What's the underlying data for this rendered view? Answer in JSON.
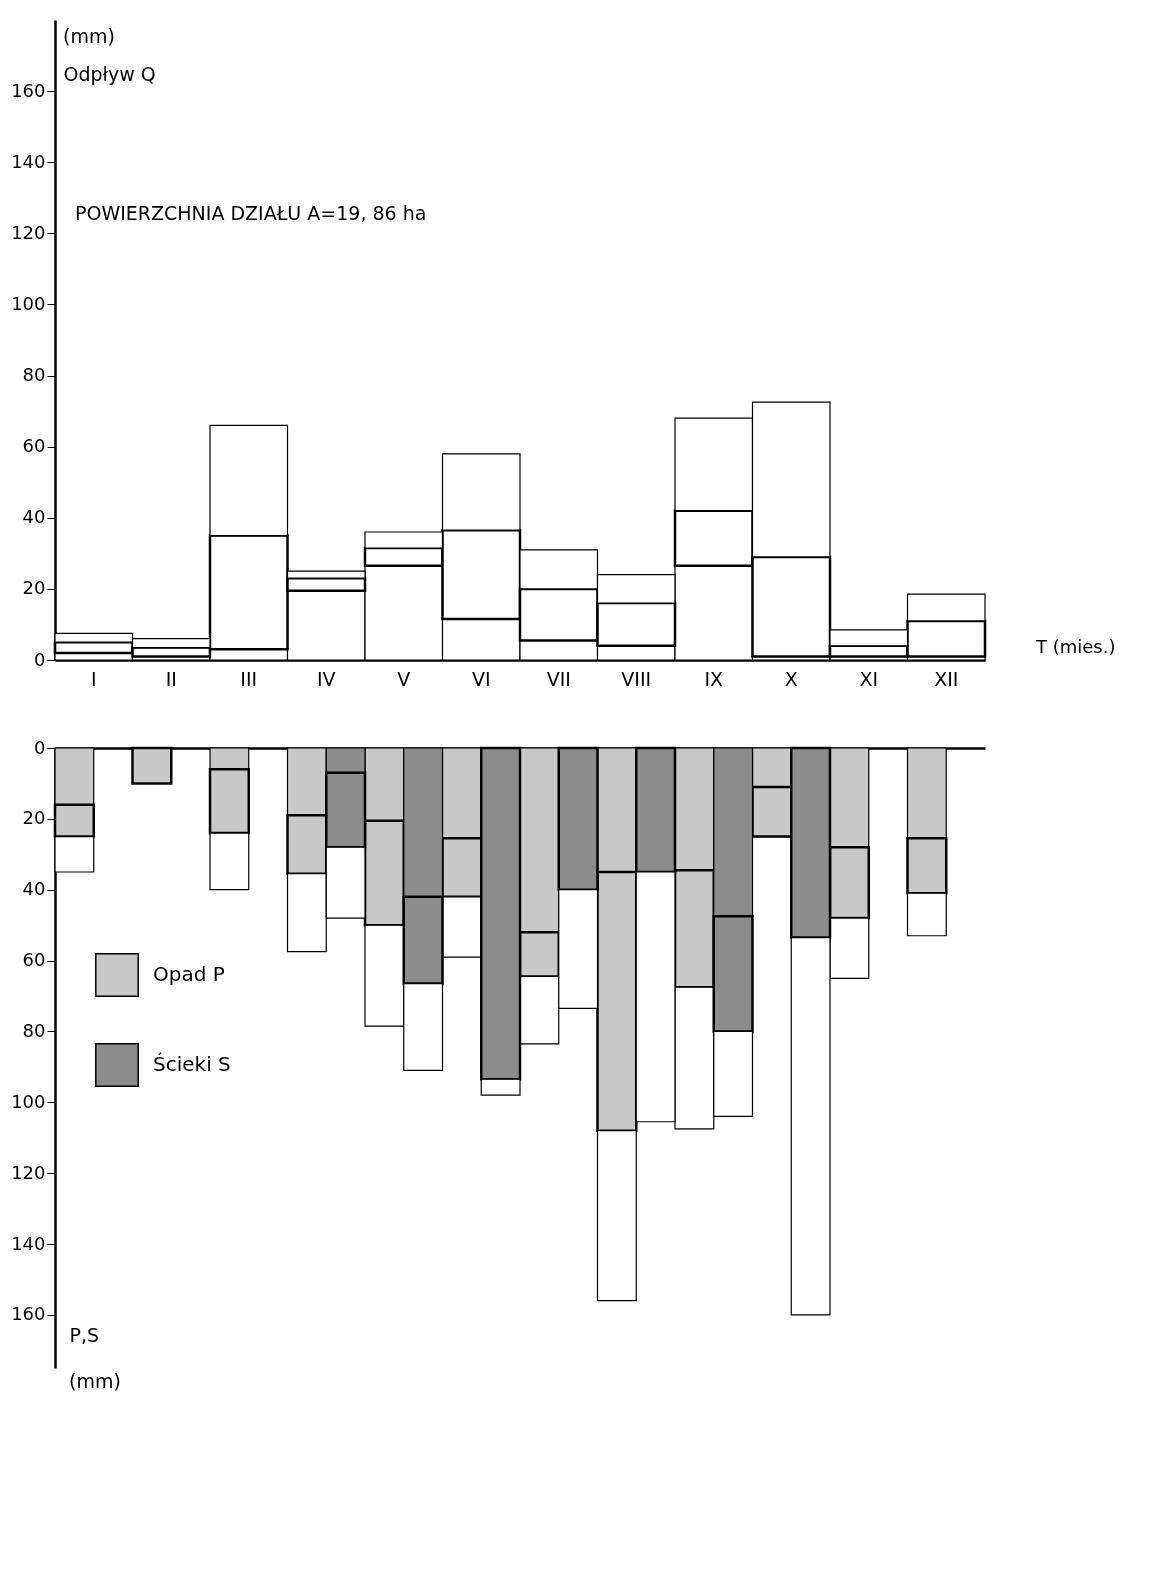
{
  "chart_data": [
    {
      "type": "bar",
      "stacked": true,
      "xlabel": "T (mies.)",
      "ylabel": "Odpływ Q",
      "annotations": [
        "(mm)",
        "POWIERZCHNIA DZIAŁU A=19, 86 ha"
      ],
      "categories": [
        "I",
        "II",
        "III",
        "IV",
        "V",
        "VI",
        "VII",
        "VIII",
        "IX",
        "X",
        "XI",
        "XII"
      ],
      "ylim": [
        0,
        180
      ],
      "yticks": [
        0,
        20,
        40,
        60,
        80,
        100,
        120,
        140,
        160
      ],
      "series": [
        {
          "color": "#ffffff",
          "values": [
            2,
            1,
            3,
            19.5,
            26.5,
            11.5,
            5.5,
            4,
            26.5,
            1,
            1,
            1
          ]
        },
        {
          "color": "#ffffff",
          "values": [
            3,
            2.5,
            32,
            3.5,
            5,
            25,
            14.5,
            12,
            15.5,
            28,
            3,
            10
          ]
        },
        {
          "color": "#ffffff",
          "values": [
            2.5,
            2.5,
            31,
            2,
            4.5,
            21.5,
            11,
            8,
            26,
            43.5,
            4.5,
            7.5
          ]
        }
      ]
    },
    {
      "type": "bar",
      "stacked": true,
      "ylabel": "P,S",
      "annotations": [
        "(mm)"
      ],
      "tick_labels": "y",
      "legend": "left",
      "categories": [
        null,
        null,
        null,
        null,
        null,
        null,
        null,
        null,
        null,
        null,
        null,
        null,
        null,
        null,
        null,
        null,
        null,
        null,
        null,
        null,
        null,
        null,
        null,
        null
      ],
      "ylim": [
        175,
        0
      ],
      "yticks": [
        0,
        20,
        40,
        60,
        80,
        100,
        120,
        140,
        160
      ],
      "series": [
        {
          "color": "#c8c8c8",
          "values": [
            16,
            null,
            null,
            null,
            6,
            null,
            19,
            null,
            20.5,
            null,
            25.5,
            null,
            52,
            null,
            35,
            null,
            34.5,
            null,
            11,
            null,
            28,
            null,
            25.5,
            null
          ]
        },
        {
          "name": "Opad P",
          "color": "#c8c8c8",
          "values": [
            9,
            null,
            10,
            null,
            18,
            null,
            16.5,
            null,
            29.5,
            null,
            16.5,
            null,
            12.5,
            null,
            73,
            null,
            33,
            null,
            14,
            null,
            20,
            null,
            15.5,
            null
          ]
        },
        {
          "color": "#ffffff",
          "values": [
            10,
            null,
            null,
            null,
            16,
            null,
            22,
            null,
            28.5,
            null,
            17,
            null,
            19,
            null,
            48,
            null,
            40,
            null,
            null,
            null,
            17,
            null,
            12,
            null
          ]
        },
        {
          "color": "#8c8c8c",
          "values": [
            null,
            null,
            null,
            null,
            null,
            null,
            null,
            7,
            null,
            42,
            null,
            null,
            null,
            null,
            null,
            null,
            null,
            47.5,
            null,
            null,
            null,
            null,
            null,
            null
          ]
        },
        {
          "name": "Ścieki S",
          "color": "#8c8c8c",
          "values": [
            null,
            null,
            null,
            null,
            null,
            null,
            null,
            21,
            null,
            24.5,
            null,
            93.5,
            null,
            40,
            null,
            35,
            null,
            32.5,
            null,
            53.5,
            null,
            null,
            null,
            null
          ]
        },
        {
          "color": "#ffffff",
          "values": [
            null,
            null,
            null,
            null,
            null,
            null,
            null,
            20,
            null,
            24.5,
            null,
            4.5,
            null,
            33.5,
            null,
            70.5,
            null,
            24,
            null,
            106.5,
            null,
            null,
            null,
            null
          ]
        }
      ]
    }
  ]
}
